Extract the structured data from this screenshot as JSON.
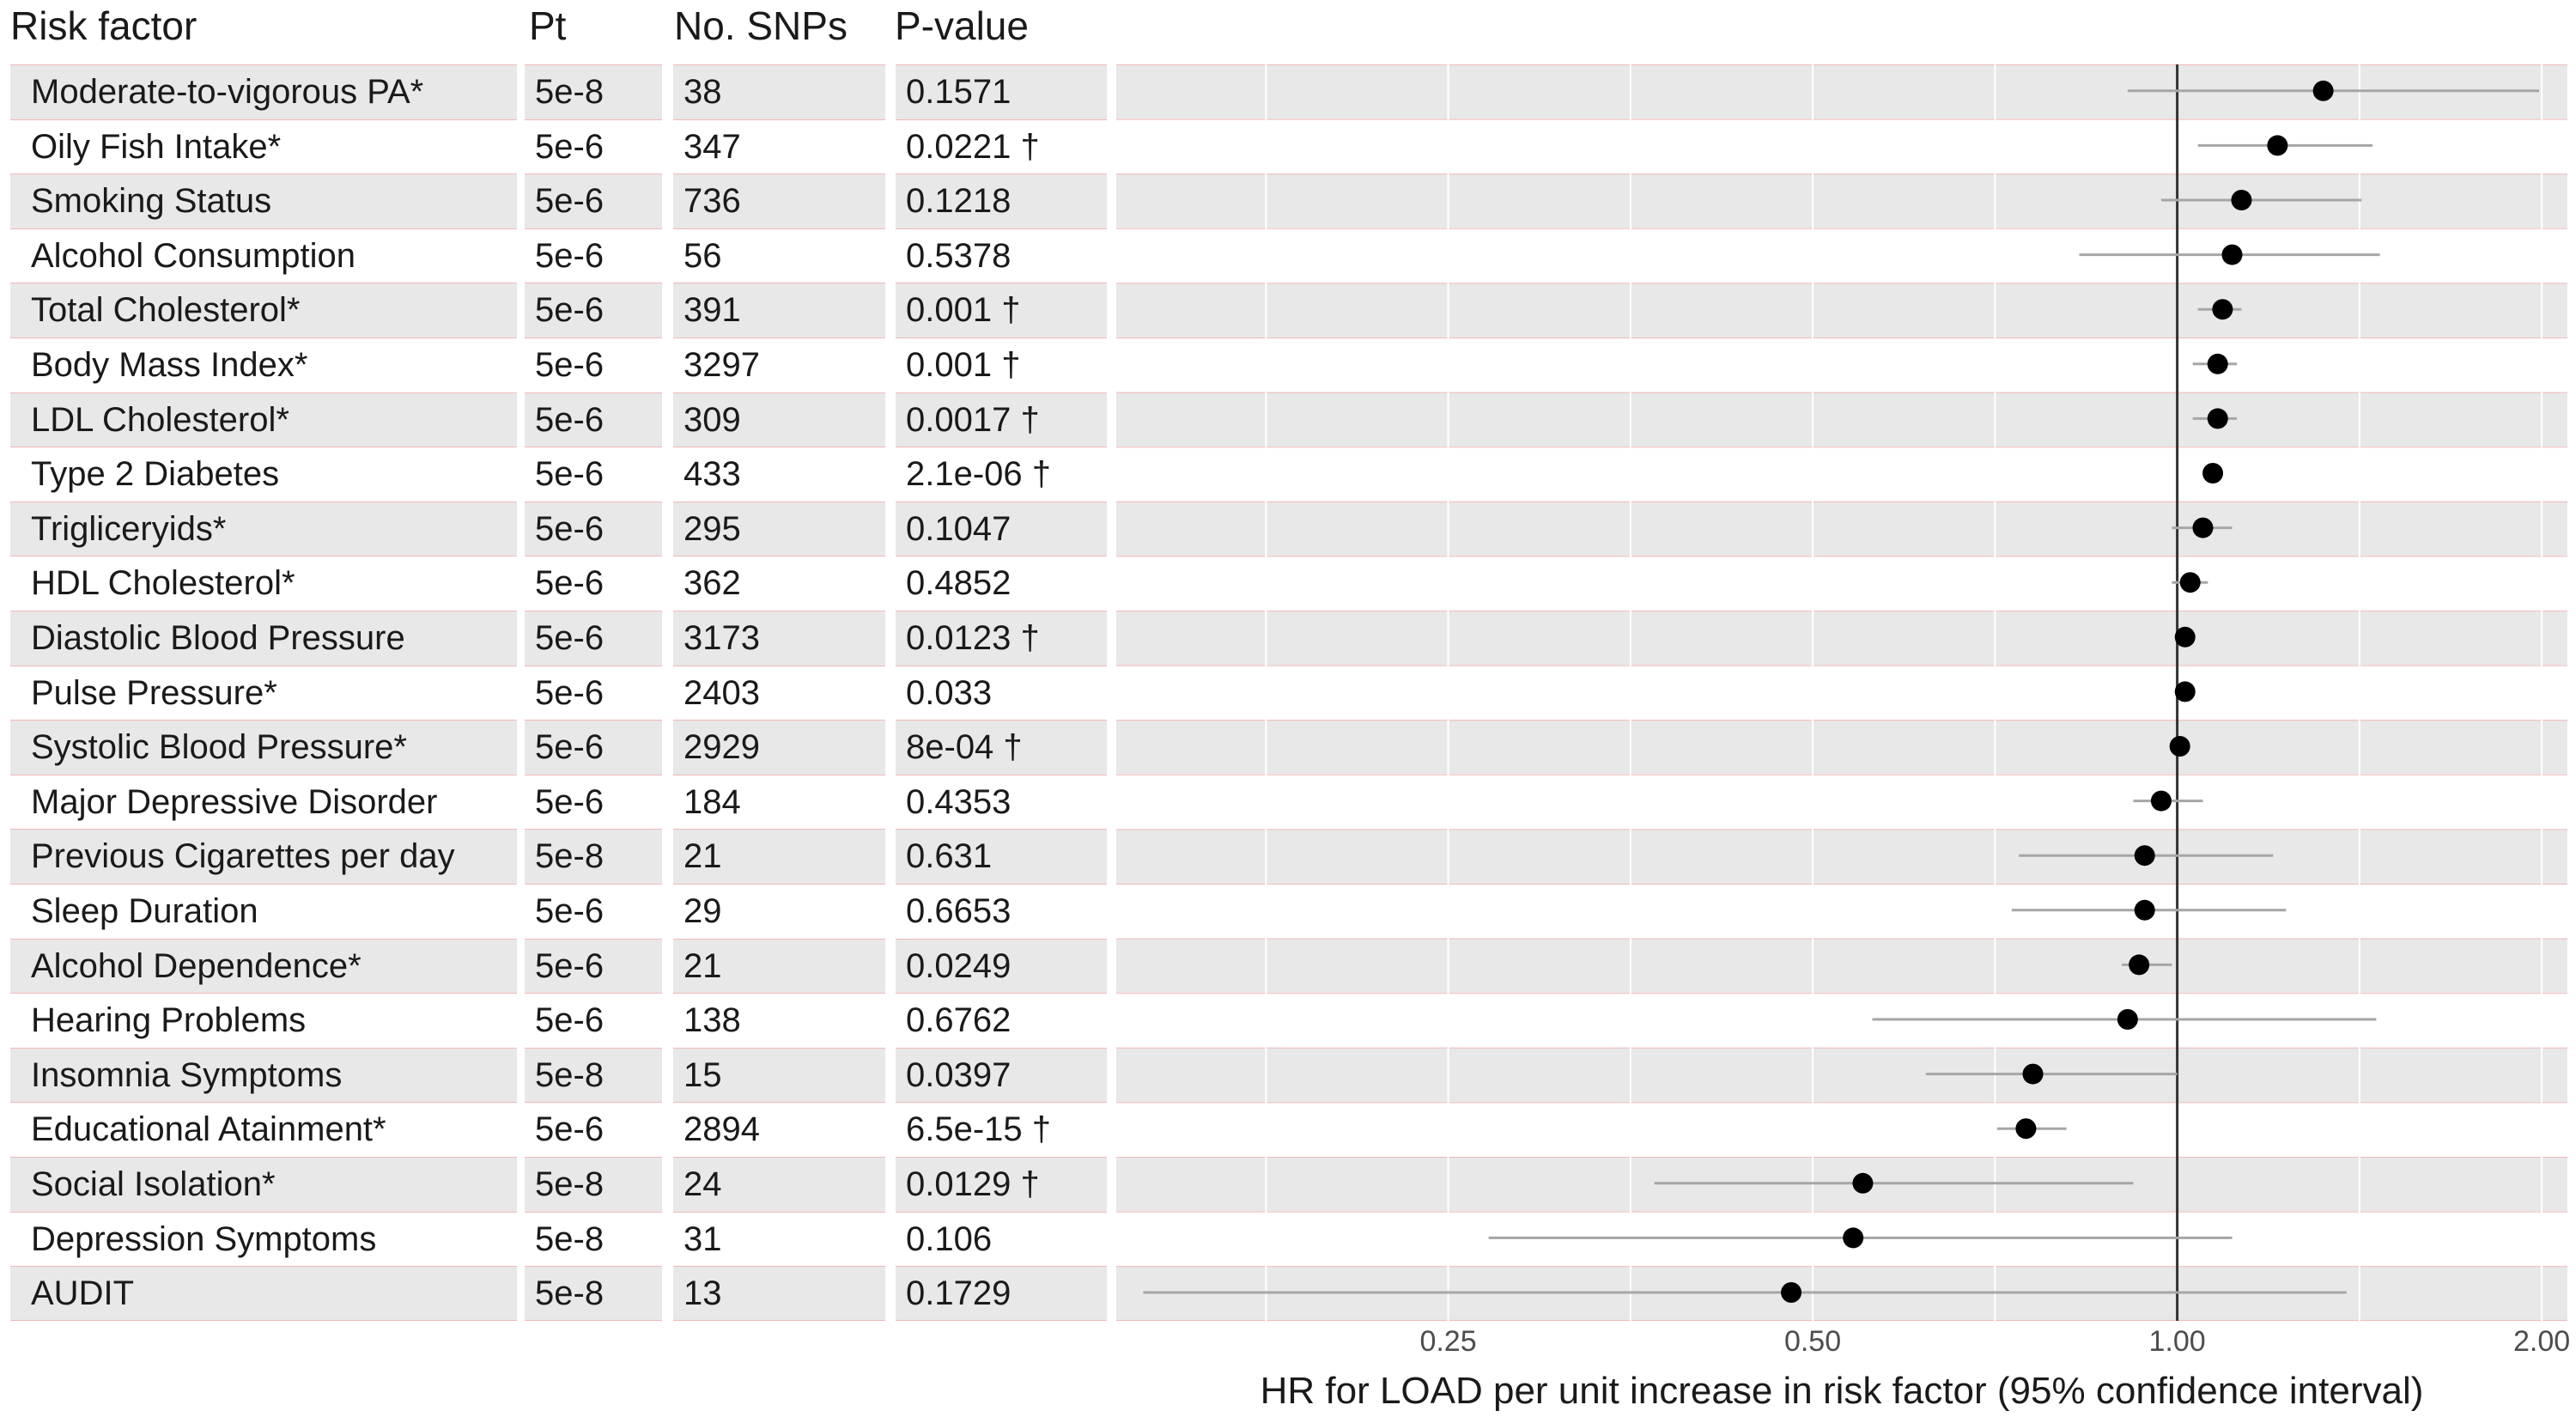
{
  "headers": {
    "factor": "Risk factor",
    "pt": "Pt",
    "snps": "No. SNPs",
    "pvalue": "P-value"
  },
  "rows": [
    {
      "factor": "Moderate-to-vigorous PA*",
      "pt": "5e-8",
      "snps": "38",
      "pvalue": "0.1571"
    },
    {
      "factor": "Oily Fish Intake*",
      "pt": "5e-6",
      "snps": "347",
      "pvalue": "0.0221 †"
    },
    {
      "factor": "Smoking Status",
      "pt": "5e-6",
      "snps": "736",
      "pvalue": "0.1218"
    },
    {
      "factor": "Alcohol Consumption",
      "pt": "5e-6",
      "snps": "56",
      "pvalue": "0.5378"
    },
    {
      "factor": "Total Cholesterol*",
      "pt": "5e-6",
      "snps": "391",
      "pvalue": "0.001 †"
    },
    {
      "factor": "Body Mass Index*",
      "pt": "5e-6",
      "snps": "3297",
      "pvalue": "0.001 †"
    },
    {
      "factor": "LDL Cholesterol*",
      "pt": "5e-6",
      "snps": "309",
      "pvalue": "0.0017 †"
    },
    {
      "factor": "Type 2 Diabetes",
      "pt": "5e-6",
      "snps": "433",
      "pvalue": "2.1e-06 †"
    },
    {
      "factor": "Trigliceryids*",
      "pt": "5e-6",
      "snps": "295",
      "pvalue": "0.1047"
    },
    {
      "factor": "HDL Cholesterol*",
      "pt": "5e-6",
      "snps": "362",
      "pvalue": "0.4852"
    },
    {
      "factor": "Diastolic Blood Pressure",
      "pt": "5e-6",
      "snps": "3173",
      "pvalue": "0.0123 †"
    },
    {
      "factor": "Pulse Pressure*",
      "pt": "5e-6",
      "snps": "2403",
      "pvalue": "0.033"
    },
    {
      "factor": "Systolic Blood Pressure*",
      "pt": "5e-6",
      "snps": "2929",
      "pvalue": "8e-04 †"
    },
    {
      "factor": "Major Depressive Disorder",
      "pt": "5e-6",
      "snps": "184",
      "pvalue": "0.4353"
    },
    {
      "factor": "Previous Cigarettes per day",
      "pt": "5e-8",
      "snps": "21",
      "pvalue": "0.631"
    },
    {
      "factor": "Sleep Duration",
      "pt": "5e-6",
      "snps": "29",
      "pvalue": "0.6653"
    },
    {
      "factor": "Alcohol Dependence*",
      "pt": "5e-6",
      "snps": "21",
      "pvalue": "0.0249"
    },
    {
      "factor": "Hearing Problems",
      "pt": "5e-6",
      "snps": "138",
      "pvalue": "0.6762"
    },
    {
      "factor": "Insomnia Symptoms",
      "pt": "5e-8",
      "snps": "15",
      "pvalue": "0.0397"
    },
    {
      "factor": "Educational Atainment*",
      "pt": "5e-6",
      "snps": "2894",
      "pvalue": "6.5e-15 †"
    },
    {
      "factor": "Social Isolation*",
      "pt": "5e-8",
      "snps": "24",
      "pvalue": "0.0129 †"
    },
    {
      "factor": "Depression Symptoms",
      "pt": "5e-8",
      "snps": "31",
      "pvalue": "0.106"
    },
    {
      "factor": "AUDIT",
      "pt": "5e-8",
      "snps": "13",
      "pvalue": "0.1729"
    }
  ],
  "colors": {
    "shade": "#e8e8e8",
    "border": "#f2b8b8",
    "point": "#000000",
    "ci_line": "#a6a6a6",
    "reference_line": "#333333",
    "grid": "#ffffff"
  },
  "chart_data": {
    "type": "scatter",
    "subtype": "forest",
    "xlabel": "HR for LOAD per unit increase in risk factor (95% confidence interval)",
    "x_scale": "log2",
    "xlim": [
      0.133,
      2.1
    ],
    "x_ticks": [
      0.25,
      0.5,
      1.0,
      2.0
    ],
    "x_tick_labels": [
      "0.25",
      "0.50",
      "1.00",
      "2.00"
    ],
    "reference_line": 1.0,
    "grid": true,
    "series": [
      {
        "categories": [
          "Moderate-to-vigorous PA*",
          "Oily Fish Intake*",
          "Smoking Status",
          "Alcohol Consumption",
          "Total Cholesterol*",
          "Body Mass Index*",
          "LDL Cholesterol*",
          "Type 2 Diabetes",
          "Trigliceryids*",
          "HDL Cholesterol*",
          "Diastolic Blood Pressure",
          "Pulse Pressure*",
          "Systolic Blood Pressure*",
          "Major Depressive Disorder",
          "Previous Cigarettes per day",
          "Sleep Duration",
          "Alcohol Dependence*",
          "Hearing Problems",
          "Insomnia Symptoms",
          "Educational Atainment*",
          "Social Isolation*",
          "Depression Symptoms",
          "AUDIT"
        ],
        "hr": [
          1.32,
          1.21,
          1.13,
          1.11,
          1.09,
          1.08,
          1.08,
          1.07,
          1.05,
          1.025,
          1.015,
          1.015,
          1.005,
          0.97,
          0.94,
          0.94,
          0.93,
          0.91,
          0.76,
          0.75,
          0.55,
          0.54,
          0.48
        ],
        "lower": [
          0.91,
          1.04,
          0.97,
          0.83,
          1.04,
          1.03,
          1.03,
          1.06,
          0.99,
          0.99,
          1.005,
          1.005,
          0.995,
          0.92,
          0.74,
          0.73,
          0.9,
          0.56,
          0.62,
          0.71,
          0.37,
          0.27,
          0.14
        ],
        "upper": [
          1.99,
          1.45,
          1.42,
          1.47,
          1.13,
          1.12,
          1.12,
          1.08,
          1.11,
          1.06,
          1.025,
          1.025,
          1.015,
          1.05,
          1.2,
          1.23,
          0.99,
          1.46,
          1.0,
          0.81,
          0.92,
          1.11,
          1.38
        ]
      }
    ]
  }
}
